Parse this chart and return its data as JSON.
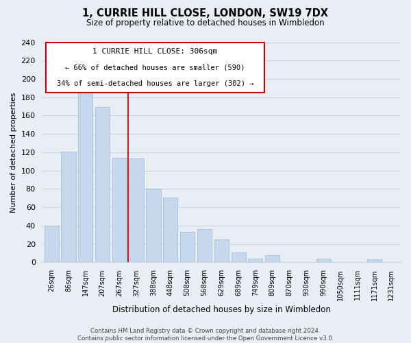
{
  "title": "1, CURRIE HILL CLOSE, LONDON, SW19 7DX",
  "subtitle": "Size of property relative to detached houses in Wimbledon",
  "xlabel": "Distribution of detached houses by size in Wimbledon",
  "ylabel": "Number of detached properties",
  "bar_labels": [
    "26sqm",
    "86sqm",
    "147sqm",
    "207sqm",
    "267sqm",
    "327sqm",
    "388sqm",
    "448sqm",
    "508sqm",
    "568sqm",
    "629sqm",
    "689sqm",
    "749sqm",
    "809sqm",
    "870sqm",
    "930sqm",
    "990sqm",
    "1050sqm",
    "1111sqm",
    "1171sqm",
    "1231sqm"
  ],
  "bar_values": [
    40,
    121,
    185,
    169,
    114,
    113,
    80,
    71,
    33,
    36,
    25,
    11,
    4,
    8,
    0,
    0,
    4,
    0,
    0,
    3,
    0
  ],
  "bar_color": "#c5d8ed",
  "bar_edge_color": "#aabdd4",
  "ylim": [
    0,
    240
  ],
  "yticks": [
    0,
    20,
    40,
    60,
    80,
    100,
    120,
    140,
    160,
    180,
    200,
    220,
    240
  ],
  "property_label": "1 CURRIE HILL CLOSE: 306sqm",
  "annotation_line1": "← 66% of detached houses are smaller (590)",
  "annotation_line2": "34% of semi-detached houses are larger (302) →",
  "vline_bin_index": 5,
  "vline_color": "#cc0000",
  "box_color": "#cc0000",
  "footer_line1": "Contains HM Land Registry data © Crown copyright and database right 2024.",
  "footer_line2": "Contains public sector information licensed under the Open Government Licence v3.0.",
  "bg_color": "#e8eef4",
  "plot_bg_color": "#e8eef4",
  "grid_color": "#c8d4e0"
}
